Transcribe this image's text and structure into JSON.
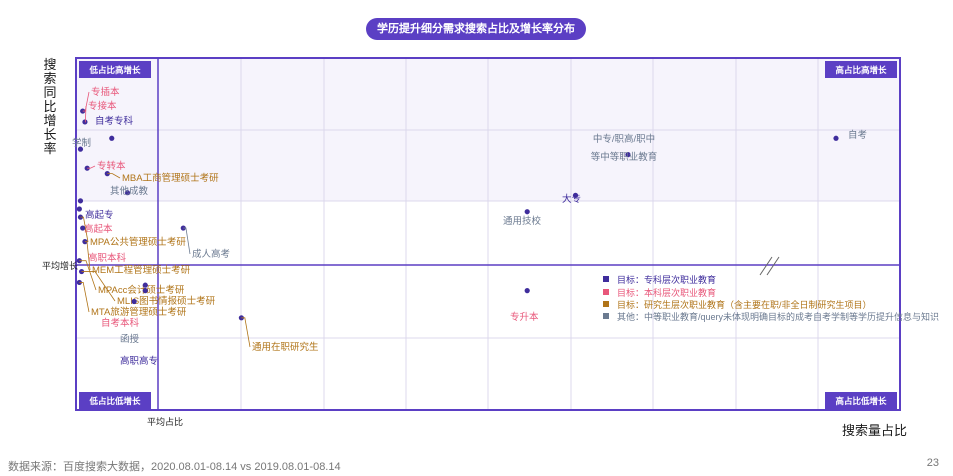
{
  "title": "学历提升细分需求搜索占比及增长率分布",
  "source": "数据来源：百度搜索大数据，2020.08.01-08.14 vs 2019.08.01-08.14",
  "page_number": "23",
  "colors": {
    "primary": "#5b3fc4",
    "vocational": "#3f2d9c",
    "undergrad": "#e8577a",
    "graduate": "#b07418",
    "other": "#6b7a90"
  },
  "chart_data": {
    "type": "scatter",
    "title": "学历提升细分需求搜索占比及增长率分布",
    "xlabel": "搜索量占比",
    "ylabel": "搜索同比增长率",
    "x_axis_break": true,
    "reference_lines": {
      "x": "平均占比",
      "y": "平均增长"
    },
    "quadrants": {
      "top_left": "低占比高增长",
      "top_right": "高占比高增长",
      "bottom_left": "低占比低增长",
      "bottom_right": "高占比低增长"
    },
    "legend": [
      {
        "key": "vocational",
        "label": "目标：专科层次职业教育"
      },
      {
        "key": "undergrad",
        "label": "目标：本科层次职业教育"
      },
      {
        "key": "graduate",
        "label": "目标：研究生层次职业教育（含主要在职/非全日制研究生项目）"
      },
      {
        "key": "other",
        "label": "其他：中等职业教育/query未体现明确目标的成考自考学制等学历提升信息与知识"
      }
    ],
    "points": [
      {
        "label": "专插本",
        "cat": "undergrad",
        "x": 0.3,
        "y": 8.6
      },
      {
        "label": "专接本",
        "cat": "undergrad",
        "x": 0.4,
        "y": 8.2
      },
      {
        "label": "自考专科",
        "cat": "vocational",
        "x": 1.6,
        "y": 7.6
      },
      {
        "label": "学制",
        "cat": "other",
        "x": 0.2,
        "y": 7.2
      },
      {
        "label": "专转本",
        "cat": "undergrad",
        "x": 0.5,
        "y": 6.5
      },
      {
        "label": "MBA工商管理硕士考研",
        "cat": "graduate",
        "x": 1.4,
        "y": 6.3
      },
      {
        "label": "其他成教",
        "cat": "other",
        "x": 2.3,
        "y": 5.6
      },
      {
        "label": "高起专",
        "cat": "vocational",
        "x": 0.2,
        "y": 5.3
      },
      {
        "label": "高起本",
        "cat": "undergrad",
        "x": 0.15,
        "y": 5.0
      },
      {
        "label": "MPA公共管理硕士考研",
        "cat": "graduate",
        "x": 0.2,
        "y": 4.7
      },
      {
        "label": "高职本科",
        "cat": "undergrad",
        "x": 0.3,
        "y": 4.3
      },
      {
        "label": "成人高考",
        "cat": "other",
        "x": 4.8,
        "y": 4.3
      },
      {
        "label": "MEM工程管理硕士考研",
        "cat": "graduate",
        "x": 0.4,
        "y": 3.8
      },
      {
        "label": "MPAcc会计硕士考研",
        "cat": "graduate",
        "x": 0.15,
        "y": 3.1
      },
      {
        "label": "MLIS图书情报硕士考研",
        "cat": "graduate",
        "x": 0.25,
        "y": 2.7
      },
      {
        "label": "MTA旅游管理硕士考研",
        "cat": "graduate",
        "x": 0.15,
        "y": 2.3
      },
      {
        "label": "自考本科",
        "cat": "undergrad",
        "x": 3.1,
        "y": 2.2
      },
      {
        "label": "函授",
        "cat": "other",
        "x": 3.1,
        "y": 2.0
      },
      {
        "label": "高职高专",
        "cat": "vocational",
        "x": 2.6,
        "y": 1.6
      },
      {
        "label": "通用在职研究生",
        "cat": "graduate",
        "x": 7.4,
        "y": 1.0
      },
      {
        "label": "专升本",
        "cat": "undergrad",
        "x": 20.2,
        "y": 2.0
      },
      {
        "label": "通用技校",
        "cat": "other",
        "x": 20.2,
        "y": 4.9
      },
      {
        "label": "大专",
        "cat": "vocational",
        "x": 22.5,
        "y": 5.5
      },
      {
        "label": "中专/职高/职中等中等职业教育",
        "cat": "other",
        "x": 25.0,
        "y": 7.0
      },
      {
        "label": "自考",
        "cat": "other",
        "x": 35.0,
        "y": 7.6
      }
    ]
  }
}
